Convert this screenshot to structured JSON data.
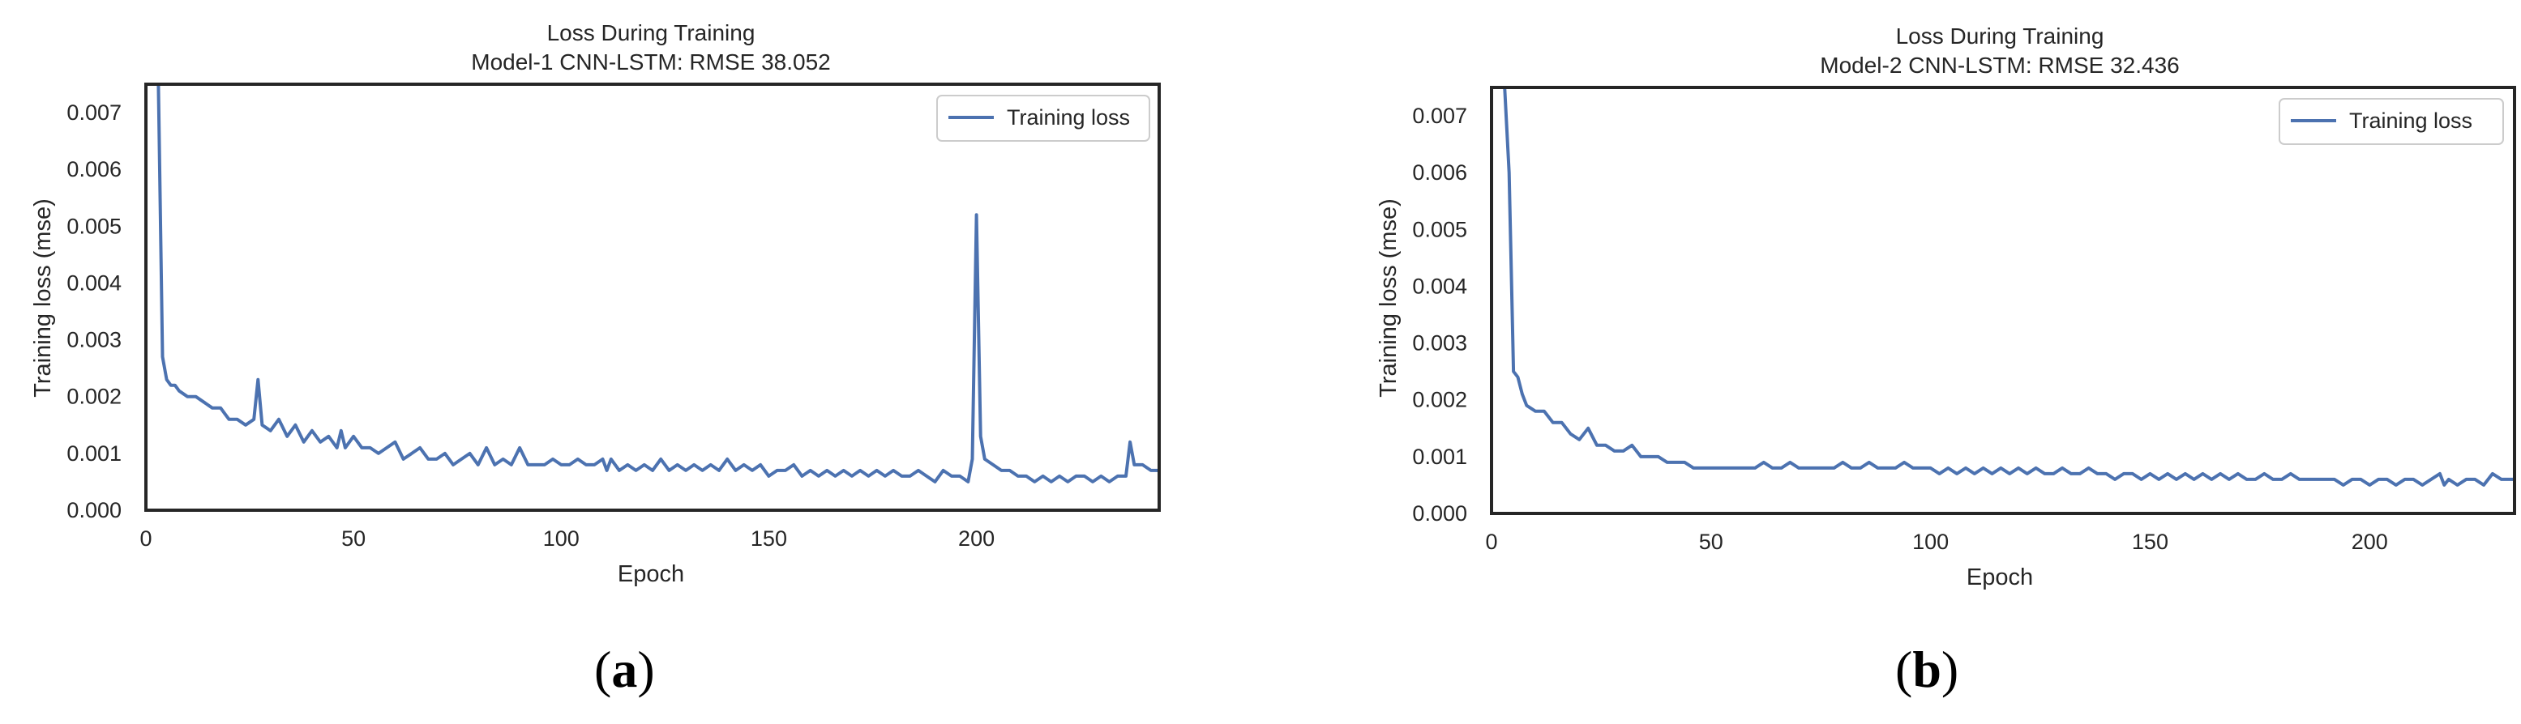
{
  "colors": {
    "line": "#4c72b0",
    "frame": "#262626",
    "text": "#262626",
    "legend_border": "#cccccc"
  },
  "chart_data": [
    {
      "type": "line",
      "title": "Loss During Training",
      "subtitle": "Model-1 CNN-LSTM: RMSE 38.052",
      "xlabel": "Epoch",
      "ylabel": "Training loss (mse)",
      "xlim": [
        0,
        244
      ],
      "ylim": [
        0,
        0.0075
      ],
      "xticks": [
        0,
        50,
        100,
        150,
        200
      ],
      "xtick_labels": [
        "0",
        "50",
        "100",
        "150",
        "200"
      ],
      "yticks": [
        0,
        0.001,
        0.002,
        0.003,
        0.004,
        0.005,
        0.006,
        0.007
      ],
      "ytick_labels": [
        "0.000",
        "0.001",
        "0.002",
        "0.003",
        "0.004",
        "0.005",
        "0.006",
        "0.007"
      ],
      "grid": false,
      "legend_position": "top-right",
      "panel_label": "a",
      "series": [
        {
          "name": "Training loss",
          "x": [
            3,
            4,
            5,
            6,
            7,
            8,
            10,
            12,
            14,
            16,
            18,
            19,
            20,
            22,
            24,
            26,
            27,
            28,
            30,
            32,
            34,
            36,
            38,
            40,
            42,
            44,
            46,
            47,
            48,
            50,
            52,
            54,
            56,
            58,
            60,
            62,
            64,
            66,
            68,
            70,
            72,
            74,
            76,
            78,
            80,
            82,
            84,
            86,
            88,
            90,
            92,
            94,
            96,
            98,
            100,
            102,
            104,
            106,
            108,
            110,
            111,
            112,
            114,
            116,
            118,
            120,
            122,
            124,
            126,
            128,
            130,
            132,
            134,
            136,
            138,
            140,
            142,
            144,
            146,
            148,
            150,
            152,
            154,
            156,
            158,
            160,
            162,
            164,
            166,
            168,
            170,
            172,
            174,
            176,
            178,
            180,
            182,
            184,
            186,
            188,
            190,
            192,
            194,
            196,
            198,
            199,
            200,
            201,
            202,
            204,
            206,
            208,
            210,
            212,
            214,
            216,
            218,
            220,
            222,
            224,
            226,
            228,
            230,
            232,
            234,
            236,
            237,
            238,
            240,
            242,
            244
          ],
          "values": [
            0.0075,
            0.0027,
            0.0023,
            0.0022,
            0.0022,
            0.0021,
            0.002,
            0.002,
            0.0019,
            0.0018,
            0.0018,
            0.0017,
            0.0016,
            0.0016,
            0.0015,
            0.0016,
            0.0023,
            0.0015,
            0.0014,
            0.0016,
            0.0013,
            0.0015,
            0.0012,
            0.0014,
            0.0012,
            0.0013,
            0.0011,
            0.0014,
            0.0011,
            0.0013,
            0.0011,
            0.0011,
            0.001,
            0.0011,
            0.0012,
            0.0009,
            0.001,
            0.0011,
            0.0009,
            0.0009,
            0.001,
            0.0008,
            0.0009,
            0.001,
            0.0008,
            0.0011,
            0.0008,
            0.0009,
            0.0008,
            0.0011,
            0.0008,
            0.0008,
            0.0008,
            0.0009,
            0.0008,
            0.0008,
            0.0009,
            0.0008,
            0.0008,
            0.0009,
            0.0007,
            0.0009,
            0.0007,
            0.0008,
            0.0007,
            0.0008,
            0.0007,
            0.0009,
            0.0007,
            0.0008,
            0.0007,
            0.0008,
            0.0007,
            0.0008,
            0.0007,
            0.0009,
            0.0007,
            0.0008,
            0.0007,
            0.0008,
            0.0006,
            0.0007,
            0.0007,
            0.0008,
            0.0006,
            0.0007,
            0.0006,
            0.0007,
            0.0006,
            0.0007,
            0.0006,
            0.0007,
            0.0006,
            0.0007,
            0.0006,
            0.0007,
            0.0006,
            0.0006,
            0.0007,
            0.0006,
            0.0005,
            0.0007,
            0.0006,
            0.0006,
            0.0005,
            0.0009,
            0.0052,
            0.0013,
            0.0009,
            0.0008,
            0.0007,
            0.0007,
            0.0006,
            0.0006,
            0.0005,
            0.0006,
            0.0005,
            0.0006,
            0.0005,
            0.0006,
            0.0006,
            0.0005,
            0.0006,
            0.0005,
            0.0006,
            0.0006,
            0.0012,
            0.0008,
            0.0008,
            0.0007,
            0.0007
          ]
        }
      ]
    },
    {
      "type": "line",
      "title": "Loss During Training",
      "subtitle": "Model-2 CNN-LSTM: RMSE 32.436",
      "xlabel": "Epoch",
      "ylabel": "Training loss (mse)",
      "xlim": [
        0,
        233
      ],
      "ylim": [
        0,
        0.0075
      ],
      "xticks": [
        0,
        50,
        100,
        150,
        200
      ],
      "xtick_labels": [
        "0",
        "50",
        "100",
        "150",
        "200"
      ],
      "yticks": [
        0,
        0.001,
        0.002,
        0.003,
        0.004,
        0.005,
        0.006,
        0.007
      ],
      "ytick_labels": [
        "0.000",
        "0.001",
        "0.002",
        "0.003",
        "0.004",
        "0.005",
        "0.006",
        "0.007"
      ],
      "grid": false,
      "legend_position": "top-right",
      "panel_label": "b",
      "series": [
        {
          "name": "Training loss",
          "x": [
            3,
            4,
            5,
            6,
            7,
            8,
            10,
            12,
            14,
            16,
            18,
            20,
            22,
            24,
            26,
            28,
            30,
            32,
            34,
            36,
            38,
            40,
            42,
            44,
            46,
            48,
            50,
            52,
            54,
            56,
            58,
            60,
            62,
            64,
            66,
            68,
            70,
            72,
            74,
            76,
            78,
            80,
            82,
            84,
            86,
            88,
            90,
            92,
            94,
            96,
            98,
            100,
            102,
            104,
            106,
            108,
            110,
            112,
            114,
            116,
            118,
            120,
            122,
            124,
            126,
            128,
            130,
            132,
            134,
            136,
            138,
            140,
            142,
            144,
            146,
            148,
            150,
            152,
            154,
            156,
            158,
            160,
            162,
            164,
            166,
            168,
            170,
            172,
            174,
            176,
            178,
            180,
            182,
            184,
            186,
            188,
            190,
            192,
            194,
            196,
            198,
            200,
            202,
            204,
            206,
            208,
            210,
            212,
            214,
            216,
            217,
            218,
            220,
            222,
            224,
            226,
            228,
            230,
            232,
            233
          ],
          "values": [
            0.0075,
            0.006,
            0.0025,
            0.0024,
            0.0021,
            0.0019,
            0.0018,
            0.0018,
            0.0016,
            0.0016,
            0.0014,
            0.0013,
            0.0015,
            0.0012,
            0.0012,
            0.0011,
            0.0011,
            0.0012,
            0.001,
            0.001,
            0.001,
            0.0009,
            0.0009,
            0.0009,
            0.0008,
            0.0008,
            0.0008,
            0.0008,
            0.0008,
            0.0008,
            0.0008,
            0.0008,
            0.0009,
            0.0008,
            0.0008,
            0.0009,
            0.0008,
            0.0008,
            0.0008,
            0.0008,
            0.0008,
            0.0009,
            0.0008,
            0.0008,
            0.0009,
            0.0008,
            0.0008,
            0.0008,
            0.0009,
            0.0008,
            0.0008,
            0.0008,
            0.0007,
            0.0008,
            0.0007,
            0.0008,
            0.0007,
            0.0008,
            0.0007,
            0.0008,
            0.0007,
            0.0008,
            0.0007,
            0.0008,
            0.0007,
            0.0007,
            0.0008,
            0.0007,
            0.0007,
            0.0008,
            0.0007,
            0.0007,
            0.0006,
            0.0007,
            0.0007,
            0.0006,
            0.0007,
            0.0006,
            0.0007,
            0.0006,
            0.0007,
            0.0006,
            0.0007,
            0.0006,
            0.0007,
            0.0006,
            0.0007,
            0.0006,
            0.0006,
            0.0007,
            0.0006,
            0.0006,
            0.0007,
            0.0006,
            0.0006,
            0.0006,
            0.0006,
            0.0006,
            0.0005,
            0.0006,
            0.0006,
            0.0005,
            0.0006,
            0.0006,
            0.0005,
            0.0006,
            0.0006,
            0.0005,
            0.0006,
            0.0007,
            0.0005,
            0.0006,
            0.0005,
            0.0006,
            0.0006,
            0.0005,
            0.0007,
            0.0006,
            0.0006,
            0.0006
          ]
        }
      ]
    }
  ]
}
